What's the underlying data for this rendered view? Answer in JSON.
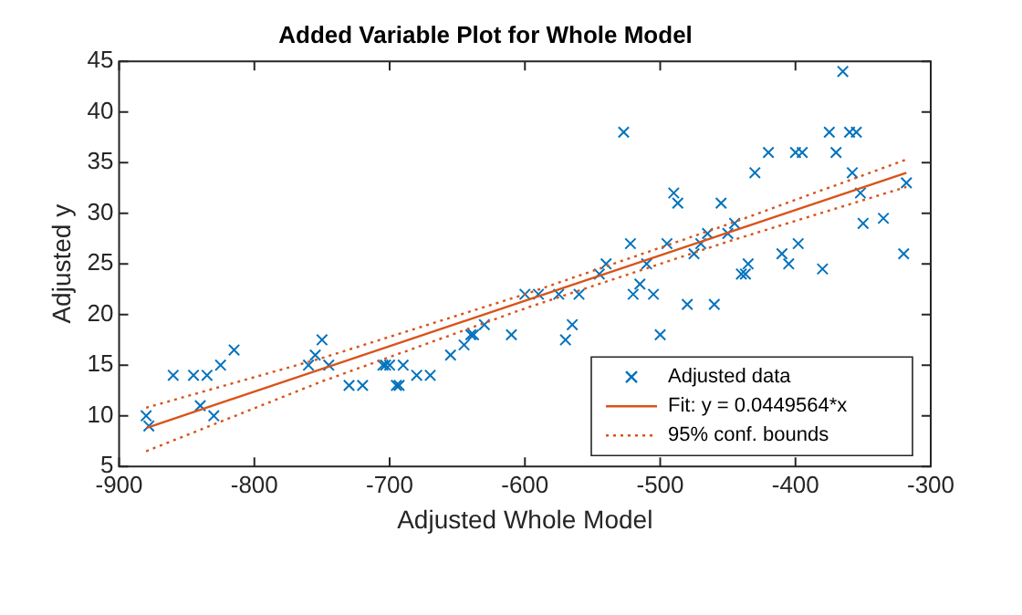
{
  "chart_data": {
    "type": "scatter",
    "title": "Added Variable Plot for Whole Model",
    "xlabel": "Adjusted Whole Model",
    "ylabel": "Adjusted y",
    "xlim": [
      -900,
      -300
    ],
    "xticks": [
      -900,
      -800,
      -700,
      -600,
      -500,
      -400,
      -300
    ],
    "ylim": [
      5,
      45
    ],
    "yticks": [
      5,
      10,
      15,
      20,
      25,
      30,
      35,
      40,
      45
    ],
    "grid": false,
    "legend": "bottom right",
    "series": [
      {
        "name": "Adjusted data",
        "type": "scatter",
        "marker": "cross",
        "color": "#0072bd",
        "x": [
          -880,
          -878,
          -860,
          -845,
          -840,
          -835,
          -830,
          -825,
          -815,
          -760,
          -755,
          -750,
          -745,
          -730,
          -720,
          -705,
          -703,
          -700,
          -695,
          -693,
          -690,
          -680,
          -670,
          -655,
          -645,
          -640,
          -638,
          -630,
          -610,
          -600,
          -590,
          -575,
          -570,
          -565,
          -560,
          -545,
          -540,
          -527,
          -522,
          -520,
          -515,
          -510,
          -505,
          -500,
          -495,
          -490,
          -487,
          -480,
          -475,
          -470,
          -465,
          -460,
          -455,
          -450,
          -445,
          -440,
          -437,
          -435,
          -430,
          -420,
          -410,
          -405,
          -400,
          -398,
          -395,
          -380,
          -375,
          -370,
          -365,
          -360,
          -358,
          -355,
          -352,
          -350,
          -335,
          -320,
          -318
        ],
        "values": [
          10,
          9,
          14,
          14,
          11,
          14,
          10,
          15,
          16.5,
          15,
          16,
          17.5,
          15,
          13,
          13,
          15,
          15,
          15,
          13,
          13,
          15,
          14,
          14,
          16,
          17,
          18,
          18,
          19,
          18,
          22,
          22,
          22,
          17.5,
          19,
          22,
          24,
          25,
          38,
          27,
          22,
          23,
          25,
          22,
          18,
          27,
          32,
          31,
          21,
          26,
          27,
          28,
          21,
          31,
          28,
          29,
          24,
          24,
          25,
          34,
          36,
          26,
          25,
          36,
          27,
          36,
          24.5,
          38,
          36,
          44,
          38,
          34,
          38,
          32,
          29,
          29.5,
          26,
          33
        ]
      },
      {
        "name": "Fit: y = 0.0449564*x",
        "type": "line",
        "marker": "none",
        "line_style": "solid",
        "color": "#d95319",
        "x": [
          -880,
          -318
        ],
        "values": [
          8.8,
          34
        ]
      },
      {
        "name": "95% conf. bounds",
        "type": "line",
        "marker": "none",
        "line_style": "dotted",
        "color": "#d95319",
        "x": [
          -880,
          -750,
          -600,
          -450,
          -318
        ],
        "values": [
          10.8,
          15.7,
          22,
          28.9,
          35.3
        ]
      },
      {
        "type": "line",
        "marker": "none",
        "line_style": "dotted",
        "color": "#d95319",
        "x": [
          -880,
          -750,
          -600,
          -450,
          -318
        ],
        "values": [
          6.5,
          13.4,
          20.6,
          27.2,
          32.6
        ]
      }
    ]
  }
}
